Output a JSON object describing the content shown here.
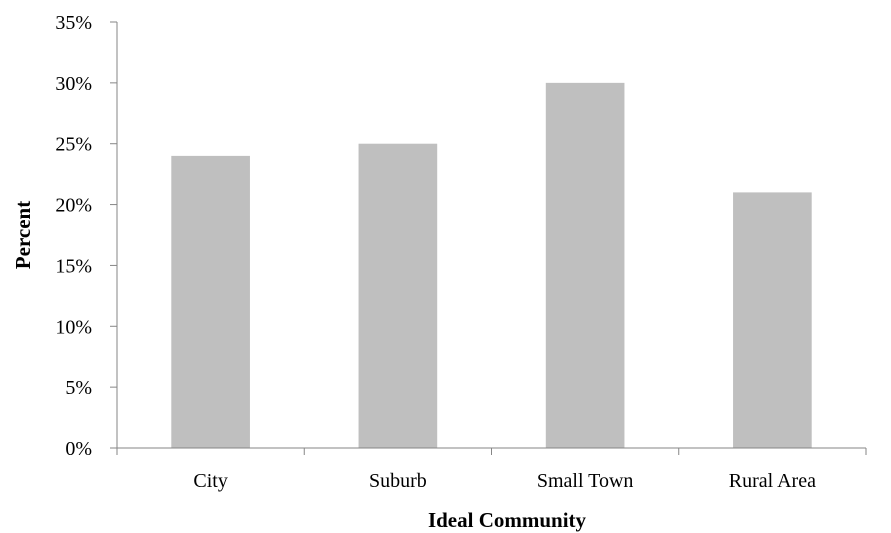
{
  "chart_data": {
    "type": "bar",
    "title": "",
    "xlabel": "Ideal Community",
    "ylabel": "Percent",
    "categories": [
      "City",
      "Suburb",
      "Small Town",
      "Rural Area"
    ],
    "values": [
      24,
      25,
      30,
      21
    ],
    "ylim": [
      0,
      35
    ],
    "yticks": [
      0,
      5,
      10,
      15,
      20,
      25,
      30,
      35
    ],
    "ytick_labels": [
      "0%",
      "5%",
      "10%",
      "15%",
      "20%",
      "25%",
      "30%",
      "35%"
    ],
    "value_unit": "percent",
    "grid": false,
    "legend": "none",
    "bar_color": "#bfbfbf",
    "axis_color": "#868686"
  }
}
